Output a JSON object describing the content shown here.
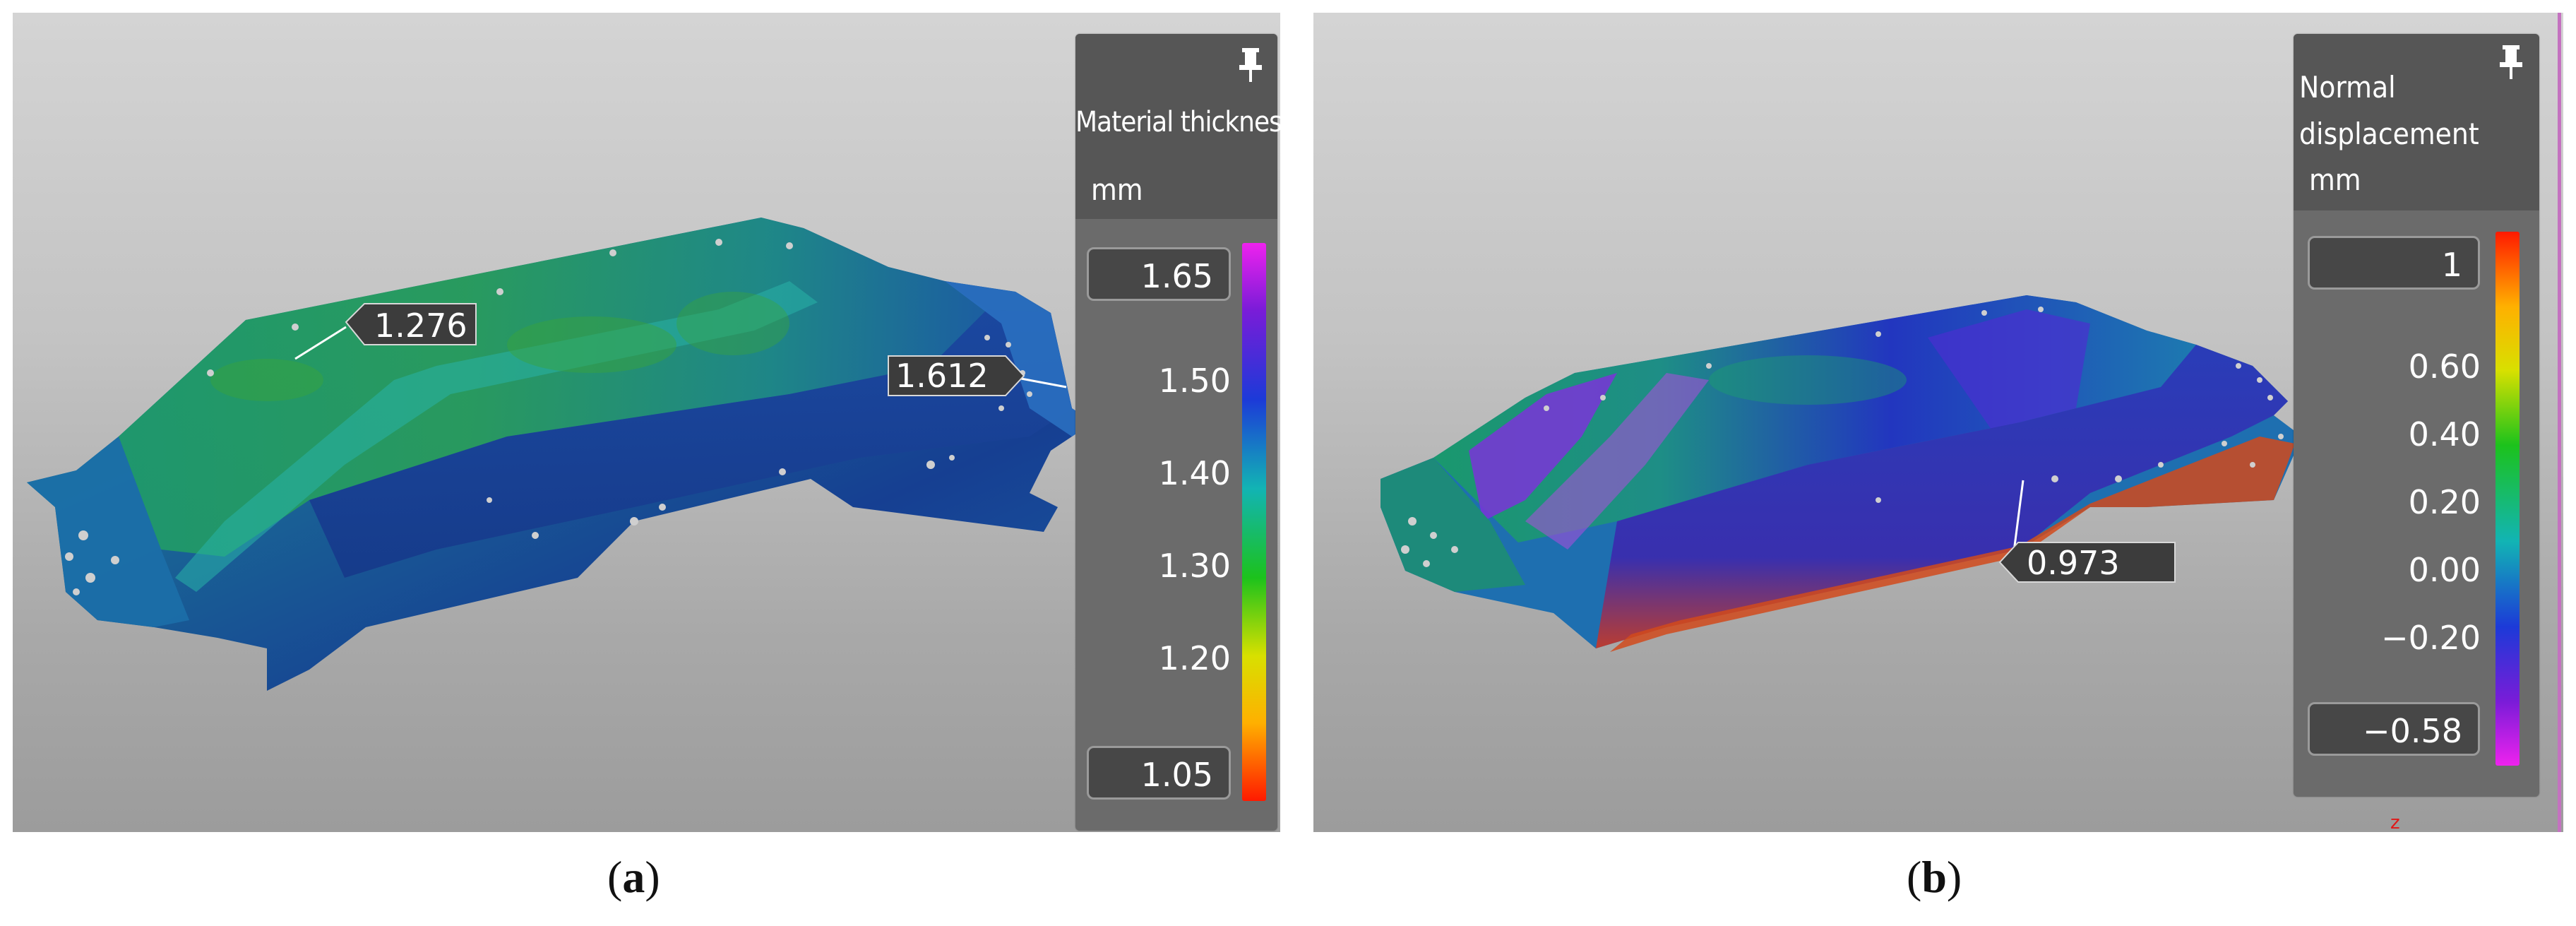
{
  "panel_a": {
    "legend": {
      "title": "Material thickness",
      "unit": "mm",
      "max_box": "1.65",
      "min_box": "1.05",
      "ticks": [
        "1.50",
        "1.40",
        "1.30",
        "1.20"
      ]
    },
    "callouts": [
      "1.276",
      "1.612"
    ],
    "caption_letter": "a"
  },
  "panel_b": {
    "legend": {
      "title_line1": "Normal",
      "title_line2": "displacement",
      "unit": "mm",
      "max_box": "1",
      "min_box": "−0.58",
      "ticks": [
        "0.60",
        "0.40",
        "0.20",
        "0.00",
        "−0.20"
      ]
    },
    "callouts": [
      "0.973"
    ],
    "axis_hint": "z",
    "caption_letter": "b"
  },
  "caption_open": "(",
  "caption_close": ")",
  "icons": {
    "pin": "pin-icon"
  },
  "colors": {
    "rainbow": [
      "#ff1a00",
      "#ffb000",
      "#d8e000",
      "#1cc21c",
      "#12b4b4",
      "#1c3ad8",
      "#7a1cd8",
      "#ee22ee"
    ]
  }
}
